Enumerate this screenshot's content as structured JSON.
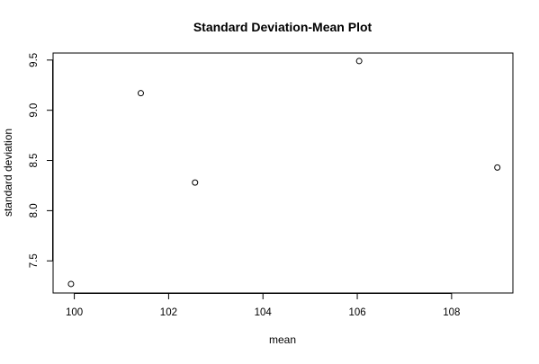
{
  "chart_data": {
    "type": "scatter",
    "title": "Standard Deviation-Mean Plot",
    "xlabel": "mean",
    "ylabel": "standard deviation",
    "xlim": [
      99.55,
      109.3
    ],
    "ylim": [
      7.18,
      9.57
    ],
    "x_ticks": [
      100,
      102,
      104,
      106,
      108
    ],
    "x_tick_labels": [
      "100",
      "102",
      "104",
      "106",
      "108"
    ],
    "y_ticks": [
      7.5,
      8.0,
      8.5,
      9.0,
      9.5
    ],
    "y_tick_labels": [
      "7.5",
      "8.0",
      "8.5",
      "9.0",
      "9.5"
    ],
    "grid": false,
    "legend": "none",
    "point_style": "open-circle",
    "points": [
      {
        "x": 99.93,
        "y": 7.27
      },
      {
        "x": 101.41,
        "y": 9.17
      },
      {
        "x": 102.56,
        "y": 8.28
      },
      {
        "x": 106.04,
        "y": 9.49
      },
      {
        "x": 108.97,
        "y": 8.43
      }
    ],
    "colors": {
      "points": "#000000",
      "axes": "#000000",
      "background": "#ffffff"
    }
  }
}
